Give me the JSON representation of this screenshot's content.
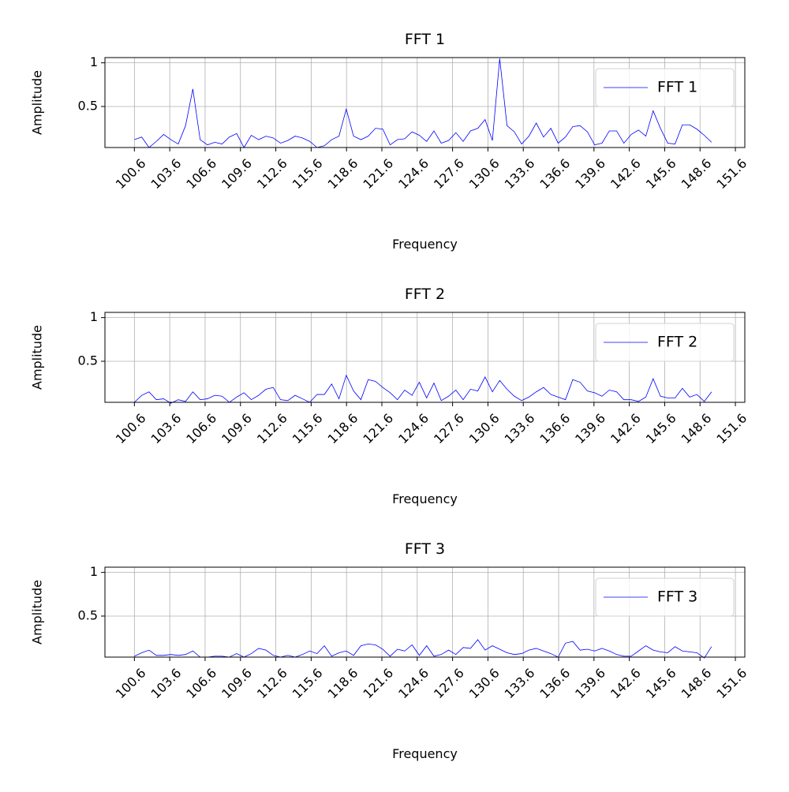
{
  "chart_data": [
    {
      "type": "line",
      "title": "FFT 1",
      "xlabel": "Frequency",
      "ylabel": "Amplitude",
      "x": [
        100.6,
        101.22,
        101.84,
        102.46,
        103.08,
        103.7,
        104.32,
        104.94,
        105.56,
        106.18,
        106.8,
        107.42,
        108.04,
        108.66,
        109.28,
        109.9,
        110.52,
        111.14,
        111.76,
        112.38,
        113.0,
        113.62,
        114.24,
        114.86,
        115.48,
        116.1,
        116.72,
        117.34,
        117.96,
        118.58,
        119.2,
        119.82,
        120.44,
        121.06,
        121.68,
        122.3,
        122.92,
        123.54,
        124.16,
        124.78,
        125.4,
        126.02,
        126.64,
        127.26,
        127.88,
        128.5,
        129.12,
        129.74,
        130.36,
        130.98,
        131.6,
        132.22,
        132.84,
        133.46,
        134.08,
        134.7,
        135.32,
        135.94,
        136.56,
        137.18,
        137.8,
        138.42,
        139.04,
        139.66,
        140.28,
        140.9,
        141.52,
        142.14,
        142.76,
        143.38,
        144.0,
        144.62,
        145.24,
        145.86,
        146.48,
        147.1,
        147.72,
        148.34,
        148.96,
        149.58
      ],
      "series": [
        {
          "name": "FFT 1",
          "color": "#0000ff",
          "values": [
            0.12,
            0.15,
            0.03,
            0.1,
            0.18,
            0.12,
            0.07,
            0.28,
            0.7,
            0.12,
            0.06,
            0.09,
            0.07,
            0.15,
            0.19,
            0.03,
            0.17,
            0.12,
            0.16,
            0.14,
            0.08,
            0.11,
            0.16,
            0.14,
            0.1,
            0.03,
            0.05,
            0.12,
            0.16,
            0.47,
            0.16,
            0.12,
            0.16,
            0.25,
            0.24,
            0.06,
            0.12,
            0.13,
            0.21,
            0.17,
            0.1,
            0.22,
            0.08,
            0.11,
            0.2,
            0.1,
            0.22,
            0.25,
            0.35,
            0.11,
            1.05,
            0.28,
            0.21,
            0.07,
            0.16,
            0.31,
            0.15,
            0.25,
            0.08,
            0.15,
            0.27,
            0.28,
            0.21,
            0.06,
            0.08,
            0.22,
            0.22,
            0.08,
            0.18,
            0.23,
            0.16,
            0.45,
            0.25,
            0.08,
            0.07,
            0.29,
            0.29,
            0.24,
            0.17,
            0.09
          ]
        }
      ],
      "xlim": [
        98.1,
        152.4
      ],
      "ylim": [
        0.03,
        1.06
      ],
      "xticks": [
        100.6,
        103.6,
        106.6,
        109.6,
        112.6,
        115.6,
        118.6,
        121.6,
        124.6,
        127.6,
        130.6,
        133.6,
        136.6,
        139.6,
        142.6,
        145.6,
        148.6,
        151.6
      ],
      "yticks": [
        0.5,
        1.0
      ],
      "grid": true,
      "legend": "upper right"
    },
    {
      "type": "line",
      "title": "FFT 2",
      "xlabel": "Frequency",
      "ylabel": "Amplitude",
      "x": [
        100.6,
        101.22,
        101.84,
        102.46,
        103.08,
        103.7,
        104.32,
        104.94,
        105.56,
        106.18,
        106.8,
        107.42,
        108.04,
        108.66,
        109.28,
        109.9,
        110.52,
        111.14,
        111.76,
        112.38,
        113.0,
        113.62,
        114.24,
        114.86,
        115.48,
        116.1,
        116.72,
        117.34,
        117.96,
        118.58,
        119.2,
        119.82,
        120.44,
        121.06,
        121.68,
        122.3,
        122.92,
        123.54,
        124.16,
        124.78,
        125.4,
        126.02,
        126.64,
        127.26,
        127.88,
        128.5,
        129.12,
        129.74,
        130.36,
        130.98,
        131.6,
        132.22,
        132.84,
        133.46,
        134.08,
        134.7,
        135.32,
        135.94,
        136.56,
        137.18,
        137.8,
        138.42,
        139.04,
        139.66,
        140.28,
        140.9,
        141.52,
        142.14,
        142.76,
        143.38,
        144.0,
        144.62,
        145.24,
        145.86,
        146.48,
        147.1,
        147.72,
        148.34,
        148.96,
        149.58
      ],
      "series": [
        {
          "name": "FFT 2",
          "color": "#0000ff",
          "values": [
            0.03,
            0.11,
            0.15,
            0.06,
            0.07,
            0.02,
            0.06,
            0.04,
            0.15,
            0.06,
            0.07,
            0.11,
            0.1,
            0.03,
            0.09,
            0.14,
            0.06,
            0.11,
            0.18,
            0.2,
            0.06,
            0.05,
            0.11,
            0.07,
            0.03,
            0.12,
            0.12,
            0.24,
            0.07,
            0.34,
            0.16,
            0.06,
            0.29,
            0.27,
            0.2,
            0.14,
            0.06,
            0.17,
            0.11,
            0.26,
            0.08,
            0.25,
            0.05,
            0.1,
            0.17,
            0.06,
            0.18,
            0.16,
            0.32,
            0.15,
            0.28,
            0.18,
            0.1,
            0.05,
            0.09,
            0.15,
            0.2,
            0.12,
            0.09,
            0.06,
            0.29,
            0.26,
            0.16,
            0.14,
            0.1,
            0.17,
            0.15,
            0.06,
            0.06,
            0.04,
            0.09,
            0.3,
            0.1,
            0.08,
            0.08,
            0.19,
            0.09,
            0.12,
            0.04,
            0.15
          ]
        }
      ],
      "xlim": [
        98.1,
        152.4
      ],
      "ylim": [
        0.03,
        1.06
      ],
      "xticks": [
        100.6,
        103.6,
        106.6,
        109.6,
        112.6,
        115.6,
        118.6,
        121.6,
        124.6,
        127.6,
        130.6,
        133.6,
        136.6,
        139.6,
        142.6,
        145.6,
        148.6,
        151.6
      ],
      "yticks": [
        0.5,
        1.0
      ],
      "grid": true,
      "legend": "upper right"
    },
    {
      "type": "line",
      "title": "FFT 3",
      "xlabel": "Frequency",
      "ylabel": "Amplitude",
      "x": [
        100.6,
        101.22,
        101.84,
        102.46,
        103.08,
        103.7,
        104.32,
        104.94,
        105.56,
        106.18,
        106.8,
        107.42,
        108.04,
        108.66,
        109.28,
        109.9,
        110.52,
        111.14,
        111.76,
        112.38,
        113.0,
        113.62,
        114.24,
        114.86,
        115.48,
        116.1,
        116.72,
        117.34,
        117.96,
        118.58,
        119.2,
        119.82,
        120.44,
        121.06,
        121.68,
        122.3,
        122.92,
        123.54,
        124.16,
        124.78,
        125.4,
        126.02,
        126.64,
        127.26,
        127.88,
        128.5,
        129.12,
        129.74,
        130.36,
        130.98,
        131.6,
        132.22,
        132.84,
        133.46,
        134.08,
        134.7,
        135.32,
        135.94,
        136.56,
        137.18,
        137.8,
        138.42,
        139.04,
        139.66,
        140.28,
        140.9,
        141.52,
        142.14,
        142.76,
        143.38,
        144.0,
        144.62,
        145.24,
        145.86,
        146.48,
        147.1,
        147.72,
        148.34,
        148.96,
        149.58
      ],
      "series": [
        {
          "name": "FFT 3",
          "color": "#0000ff",
          "values": [
            0.04,
            0.08,
            0.11,
            0.05,
            0.05,
            0.06,
            0.05,
            0.06,
            0.1,
            0.03,
            0.03,
            0.04,
            0.04,
            0.03,
            0.07,
            0.03,
            0.07,
            0.13,
            0.11,
            0.05,
            0.03,
            0.05,
            0.03,
            0.06,
            0.1,
            0.07,
            0.16,
            0.04,
            0.08,
            0.1,
            0.05,
            0.16,
            0.18,
            0.17,
            0.12,
            0.04,
            0.12,
            0.1,
            0.17,
            0.05,
            0.16,
            0.04,
            0.06,
            0.11,
            0.06,
            0.14,
            0.13,
            0.23,
            0.11,
            0.16,
            0.12,
            0.08,
            0.06,
            0.07,
            0.11,
            0.13,
            0.1,
            0.07,
            0.03,
            0.19,
            0.21,
            0.11,
            0.12,
            0.1,
            0.13,
            0.1,
            0.06,
            0.04,
            0.04,
            0.1,
            0.16,
            0.11,
            0.09,
            0.08,
            0.15,
            0.1,
            0.09,
            0.08,
            0.02,
            0.15
          ]
        }
      ],
      "xlim": [
        98.1,
        152.4
      ],
      "ylim": [
        0.03,
        1.06
      ],
      "xticks": [
        100.6,
        103.6,
        106.6,
        109.6,
        112.6,
        115.6,
        118.6,
        121.6,
        124.6,
        127.6,
        130.6,
        133.6,
        136.6,
        139.6,
        142.6,
        145.6,
        148.6,
        151.6
      ],
      "yticks": [
        0.5,
        1.0
      ],
      "grid": true,
      "legend": "upper right"
    }
  ]
}
